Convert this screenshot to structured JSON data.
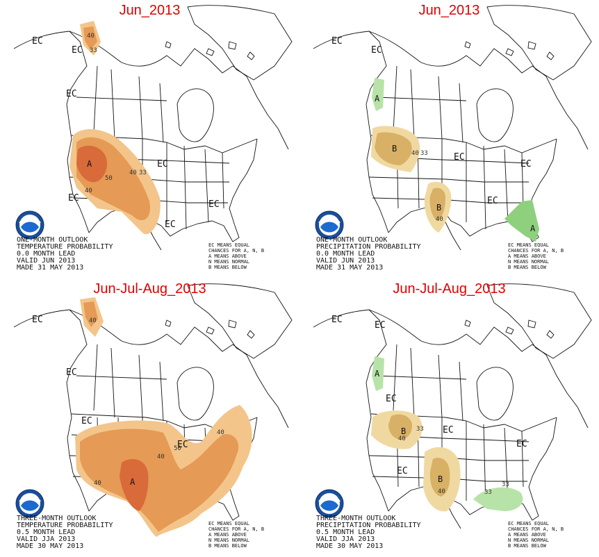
{
  "panels": [
    {
      "title": "Jun_2013",
      "info": [
        "ONE-MONTH OUTLOOK",
        "TEMPERATURE PROBABILITY",
        "0.0 MONTH LEAD",
        "VALID JUN 2013",
        "MADE 31 MAY 2013"
      ],
      "ec_labels": [
        "EC",
        "EC",
        "EC",
        "EC",
        "EC",
        "EC",
        "EC"
      ],
      "category_labels": [
        "A"
      ],
      "contour_labels": [
        "40",
        "33",
        "40",
        "33",
        "50",
        "40"
      ]
    },
    {
      "title": "Jun_2013",
      "info": [
        "ONE-MONTH OUTLOOK",
        "PRECIPITATION PROBABILITY",
        "0.0 MONTH LEAD",
        "VALID JUN 2013",
        "MADE 31 MAY 2013"
      ],
      "ec_labels": [
        "EC",
        "EC",
        "EC",
        "EC",
        "EC"
      ],
      "category_labels": [
        "A",
        "B",
        "B",
        "A"
      ],
      "contour_labels": [
        "40",
        "33",
        "40"
      ]
    },
    {
      "title": "Jun-Jul-Aug_2013",
      "info": [
        "THREE-MONTH OUTLOOK",
        "TEMPERATURE PROBABILITY",
        "0.5 MONTH LEAD",
        "VALID JJA 2013",
        "MADE 30 MAY 2013"
      ],
      "ec_labels": [
        "EC",
        "EC",
        "EC",
        "EC"
      ],
      "category_labels": [
        "A"
      ],
      "contour_labels": [
        "40",
        "40",
        "40",
        "40",
        "50"
      ]
    },
    {
      "title": "Jun-Jul-Aug_2013",
      "info": [
        "THREE-MONTH OUTLOOK",
        "PRECIPITATION PROBABILITY",
        "0.5 MONTH LEAD",
        "VALID JJA 2013",
        "MADE 30 MAY 2013"
      ],
      "ec_labels": [
        "EC",
        "EC",
        "EC",
        "EC",
        "EC",
        "EC"
      ],
      "category_labels": [
        "A",
        "B",
        "B"
      ],
      "contour_labels": [
        "33",
        "40",
        "40",
        "33",
        "33"
      ]
    }
  ],
  "legend": [
    "EC MEANS EQUAL",
    "CHANCES FOR A, N, B",
    "A MEANS ABOVE",
    "N MEANS NORMAL",
    "B MEANS BELOW"
  ],
  "colors": {
    "above_33": "#f3c58a",
    "above_40": "#e59a55",
    "above_50": "#d96a3a",
    "below_33": "#f0d9a0",
    "below_40": "#d8b066",
    "wet_33": "#b8e3a8",
    "wet_40": "#8fd07e",
    "title": "#e00000"
  }
}
